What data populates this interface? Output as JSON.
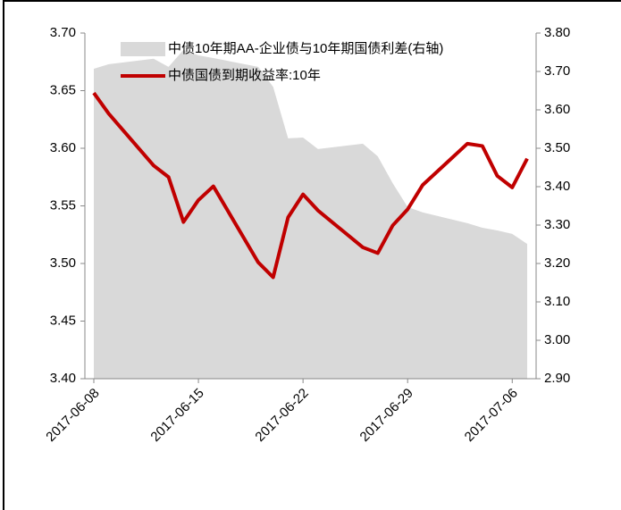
{
  "chart_data": {
    "type": "line",
    "x": [
      "2017-06-08",
      "2017-06-09",
      "2017-06-12",
      "2017-06-13",
      "2017-06-14",
      "2017-06-15",
      "2017-06-16",
      "2017-06-19",
      "2017-06-20",
      "2017-06-21",
      "2017-06-22",
      "2017-06-23",
      "2017-06-26",
      "2017-06-27",
      "2017-06-28",
      "2017-06-29",
      "2017-06-30",
      "2017-07-03",
      "2017-07-04",
      "2017-07-05",
      "2017-07-06",
      "2017-07-07"
    ],
    "xticks": [
      "2017-06-08",
      "2017-06-15",
      "2017-06-22",
      "2017-06-29",
      "2017-07-06"
    ],
    "series": [
      {
        "name": "中债10年期AA-企业债与10年期国债利差(右轴)",
        "type": "area",
        "axis": "y2",
        "color": "#d9d9d9",
        "values": [
          3.707,
          3.719,
          3.733,
          3.712,
          3.756,
          3.742,
          3.735,
          3.712,
          3.66,
          3.526,
          3.528,
          3.498,
          3.512,
          3.479,
          3.409,
          3.347,
          3.333,
          3.305,
          3.293,
          3.286,
          3.277,
          3.251
        ]
      },
      {
        "name": "中债国债到期收益率:10年",
        "type": "line",
        "axis": "y",
        "color": "#c00000",
        "values": [
          3.648,
          3.63,
          3.585,
          3.575,
          3.536,
          3.555,
          3.567,
          3.501,
          3.488,
          3.54,
          3.56,
          3.546,
          3.514,
          3.509,
          3.533,
          3.547,
          3.568,
          3.604,
          3.602,
          3.576,
          3.566,
          3.591
        ]
      }
    ],
    "ylim": [
      3.4,
      3.7
    ],
    "yticks": [
      {
        "value": 3.4,
        "label": "3.40"
      },
      3.45,
      {
        "value": 3.5,
        "label": "3.50"
      },
      3.55,
      {
        "value": 3.6,
        "label": "3.60"
      },
      3.65,
      {
        "value": 3.7,
        "label": "3.70"
      }
    ],
    "y2lim": [
      2.9,
      3.8
    ],
    "y2ticks": [
      {
        "value": 2.9,
        "label": "2.90"
      },
      {
        "value": 3.0,
        "label": "3.00"
      },
      {
        "value": 3.1,
        "label": "3.10"
      },
      {
        "value": 3.2,
        "label": "3.20"
      },
      {
        "value": 3.3,
        "label": "3.30"
      },
      {
        "value": 3.4,
        "label": "3.40"
      },
      {
        "value": 3.5,
        "label": "3.50"
      },
      {
        "value": 3.6,
        "label": "3.60"
      },
      {
        "value": 3.7,
        "label": "3.70"
      },
      {
        "value": 3.8,
        "label": "3.80"
      }
    ]
  }
}
